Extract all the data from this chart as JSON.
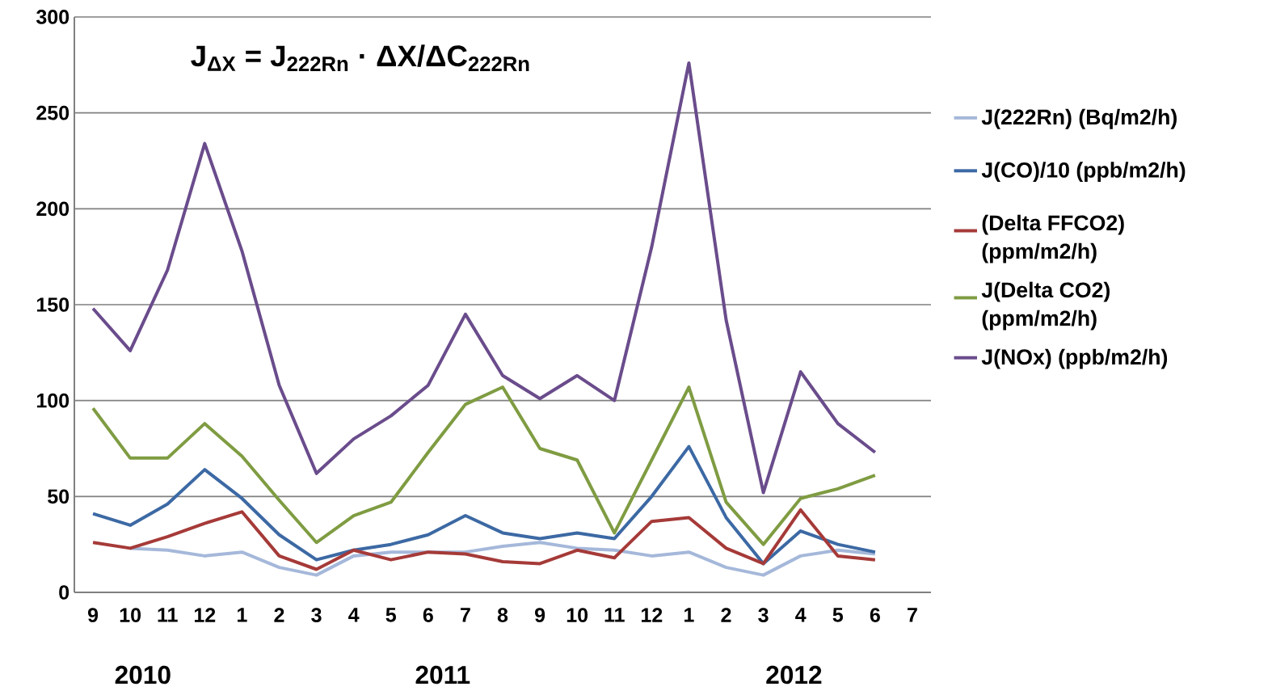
{
  "chart_data": {
    "type": "line",
    "title": "J$_{ΔX}$ = J$_{222Rn}$ · ΔX/ΔC$_{222Rn}$",
    "categories": [
      "9",
      "10",
      "11",
      "12",
      "1",
      "2",
      "3",
      "4",
      "5",
      "6",
      "7",
      "8",
      "9",
      "10",
      "11",
      "12",
      "1",
      "2",
      "3",
      "4",
      "5",
      "6",
      "7"
    ],
    "series": [
      {
        "name": "J(222Rn) (Bq/m2/h)",
        "color": "#a5b8da",
        "values": [
          null,
          23,
          22,
          19,
          21,
          13,
          9,
          19,
          21,
          21,
          21,
          24,
          26,
          23,
          22,
          19,
          21,
          13,
          9,
          19,
          22,
          20,
          null
        ]
      },
      {
        "name": "J(CO)/10 (ppb/m2/h)",
        "color": "#3c69a4",
        "values": [
          41,
          35,
          46,
          64,
          49,
          30,
          17,
          22,
          25,
          30,
          40,
          31,
          28,
          31,
          28,
          50,
          76,
          39,
          15,
          32,
          25,
          21,
          null
        ]
      },
      {
        "name": "(Delta FFCO2) (ppm/m2/h)",
        "color": "#a53a38",
        "values": [
          26,
          23,
          29,
          36,
          42,
          19,
          12,
          22,
          17,
          21,
          20,
          16,
          15,
          22,
          18,
          37,
          39,
          23,
          15,
          43,
          19,
          17,
          null
        ]
      },
      {
        "name": "J(Delta CO2) (ppm/m2/h)",
        "color": "#7f9c42",
        "values": [
          96,
          70,
          70,
          88,
          71,
          48,
          26,
          40,
          47,
          73,
          98,
          107,
          75,
          69,
          31,
          69,
          107,
          47,
          25,
          49,
          54,
          61,
          null
        ]
      },
      {
        "name": "J(NOx) (ppb/m2/h)",
        "color": "#6a4c8c",
        "values": [
          148,
          126,
          168,
          234,
          178,
          108,
          62,
          80,
          92,
          108,
          145,
          113,
          101,
          113,
          100,
          180,
          276,
          142,
          52,
          115,
          88,
          73,
          null
        ]
      }
    ],
    "ylim": [
      0,
      300
    ],
    "yticks": [
      0,
      50,
      100,
      150,
      200,
      250,
      300
    ],
    "grid": "y",
    "legend": "right",
    "marker": "none",
    "line_style": "solid",
    "annotations": [
      "2010",
      "2011",
      "2012"
    ]
  }
}
